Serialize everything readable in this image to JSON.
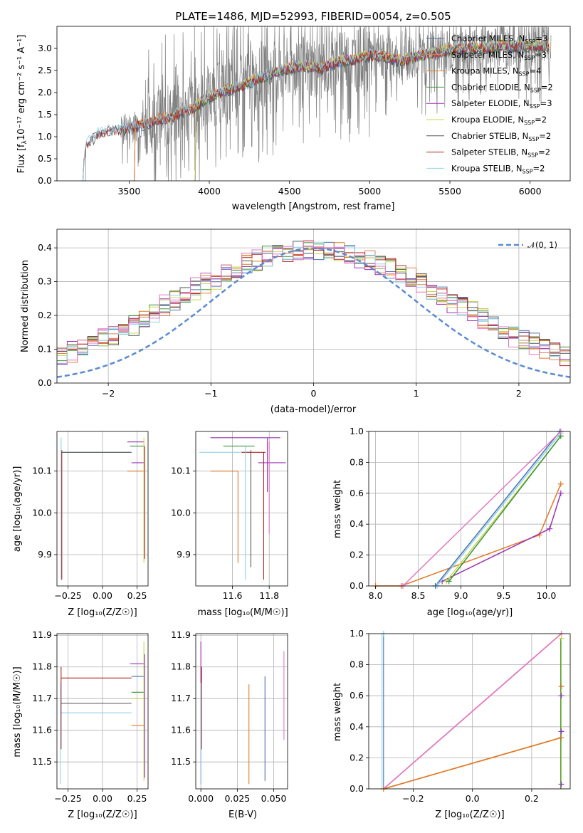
{
  "title": "PLATE=1486, MJD=52993, FIBERID=0054, z=0.505",
  "colors": {
    "chabrier_miles": "#4c72b0",
    "salpeter_miles": "#dd8452",
    "kroupa_miles": "#e07b2a",
    "chabrier_elodie": "#3a923a",
    "salpeter_elodie": "#9b30b5",
    "kroupa_elodie": "#c8d84a",
    "chabrier_stelib": "#555555",
    "salpeter_stelib": "#b22222",
    "kroupa_stelib": "#8fd3e8",
    "pink": "#e377c2",
    "normal": "#5b8bd0",
    "data": "#808080"
  },
  "spectrum": {
    "xlabel": "wavelength [Angstrom, rest frame]",
    "ylabel_main": "Flux [f",
    "ylabel_sub": "λ",
    "ylabel_rest": "10⁻¹⁷ erg cm⁻² s⁻¹ A⁻¹]",
    "xticks": [
      "3500",
      "4000",
      "4500",
      "5000",
      "5500",
      "6000"
    ],
    "yticks": [
      "0.0",
      "0.5",
      "1.0",
      "1.5",
      "2.0",
      "2.5",
      "3.0"
    ],
    "legend": [
      {
        "pre": "Chabrier MILES, N",
        "sub": "SSP",
        "post": "=3"
      },
      {
        "pre": "Salpeter MILES, N",
        "sub": "SSP",
        "post": "=3"
      },
      {
        "pre": "Kroupa MILES, N",
        "sub": "SSP",
        "post": "=4"
      },
      {
        "pre": "Chabrier ELODIE, N",
        "sub": "SSP",
        "post": "=2"
      },
      {
        "pre": "Salpeter ELODIE, N",
        "sub": "SSP",
        "post": "=3"
      },
      {
        "pre": "Kroupa ELODIE, N",
        "sub": "SSP",
        "post": "=2"
      },
      {
        "pre": "Chabrier STELIB, N",
        "sub": "SSP",
        "post": "=2"
      },
      {
        "pre": "Salpeter STELIB, N",
        "sub": "SSP",
        "post": "=2"
      },
      {
        "pre": "Kroupa STELIB, N",
        "sub": "SSP",
        "post": "=2"
      }
    ]
  },
  "histogram": {
    "xlabel": "(data-model)/error",
    "ylabel": "Normed distribution",
    "xticks": [
      "−2",
      "−1",
      "0",
      "1",
      "2"
    ],
    "yticks": [
      "0.0",
      "0.1",
      "0.2",
      "0.3",
      "0.4"
    ],
    "legend": "𝒩(0, 1)"
  },
  "panels": {
    "age_label": "age  [log₁₀(age/yr)]",
    "mass_axis_label": "mass [log₁₀(M/M☉)]",
    "z_label": "Z [log₁₀(Z/Z☉)]",
    "mass_weight": "mass weight",
    "ebv": "E(B-V)",
    "age_yticks": [
      "9.9",
      "10.0",
      "10.1"
    ],
    "z_xticks": [
      "−0.25",
      "0.00",
      "0.25"
    ],
    "mass_xticks": [
      "11.6",
      "11.8"
    ],
    "weight_yticks": [
      "0.0",
      "0.2",
      "0.4",
      "0.6",
      "0.8",
      "1.0"
    ],
    "age_xticks": [
      "8.0",
      "8.5",
      "9.0",
      "9.5",
      "10.0"
    ],
    "mass_yticks": [
      "11.5",
      "11.6",
      "11.7",
      "11.8",
      "11.9"
    ],
    "ebv_xticks": [
      "0.000",
      "0.025",
      "0.050"
    ],
    "zw_xticks": [
      "−0.2",
      "0.0",
      "0.2"
    ]
  },
  "chart_data": [
    {
      "type": "line",
      "title": "PLATE=1486, MJD=52993, FIBERID=0054, z=0.505",
      "xlabel": "wavelength [Angstrom, rest frame]",
      "ylabel": "Flux [fλ10⁻¹⁷ erg cm⁻² s⁻¹ A⁻¹]",
      "xlim": [
        3050,
        6250
      ],
      "ylim": [
        0,
        3.5
      ],
      "series_names": [
        "Chabrier MILES, N_SSP=3",
        "Salpeter MILES, N_SSP=3",
        "Kroupa MILES, N_SSP=4",
        "Chabrier ELODIE, N_SSP=2",
        "Salpeter ELODIE, N_SSP=3",
        "Kroupa ELODIE, N_SSP=2",
        "Chabrier STELIB, N_SSP=2",
        "Salpeter STELIB, N_SSP=2",
        "Kroupa STELIB, N_SSP=2"
      ],
      "model_envelope": {
        "x": [
          3200,
          3230,
          3300,
          3400,
          3500,
          3600,
          3700,
          3800,
          3900,
          4000,
          4100,
          4200,
          4300,
          4400,
          4500,
          4600,
          4700,
          4800,
          4900,
          5000,
          5100,
          5200,
          5300,
          5400,
          5500,
          5600,
          5700,
          5800,
          5900,
          6000,
          6100
        ],
        "y": [
          0.0,
          0.8,
          1.05,
          1.15,
          1.2,
          1.3,
          1.4,
          1.5,
          1.65,
          1.9,
          2.05,
          2.15,
          2.3,
          2.45,
          2.55,
          2.6,
          2.55,
          2.7,
          2.75,
          2.85,
          2.8,
          2.7,
          2.85,
          2.9,
          2.95,
          3.0,
          3.0,
          3.05,
          3.05,
          3.05,
          3.05
        ]
      },
      "grid": false,
      "legend_position": "upper-right"
    },
    {
      "type": "histogram",
      "xlabel": "(data-model)/error",
      "ylabel": "Normed distribution",
      "xlim": [
        -2.5,
        2.5
      ],
      "ylim": [
        0,
        0.45
      ],
      "bin_width": 0.1,
      "reference_curve": "𝒩(0, 1)",
      "grid": true,
      "legend_position": "upper-right"
    },
    {
      "type": "scatter",
      "xlabel": "age  [log₁₀(age/yr)]",
      "ylabel": "mass weight",
      "xlim": [
        7.92,
        10.28
      ],
      "ylim": [
        0,
        1
      ],
      "series": [
        {
          "points": [
            [
              8.3,
              0.0
            ],
            [
              9.92,
              0.33
            ],
            [
              10.17,
              0.66
            ]
          ]
        },
        {
          "points": [
            [
              8.78,
              0.03
            ],
            [
              10.04,
              0.37
            ],
            [
              10.17,
              0.6
            ]
          ]
        },
        {
          "points": [
            [
              8.7,
              0.0
            ],
            [
              10.16,
              1.0
            ]
          ]
        },
        {
          "points": [
            [
              8.83,
              0.03
            ],
            [
              10.17,
              0.97
            ]
          ]
        },
        {
          "points": [
            [
              8.32,
              0.0
            ],
            [
              10.17,
              1.0
            ]
          ]
        }
      ],
      "grid": true
    },
    {
      "type": "scatter",
      "xlabel": "Z [log₁₀(Z/Z☉)]",
      "ylabel": "mass weight",
      "xlim": [
        -0.35,
        0.33
      ],
      "ylim": [
        0,
        1
      ],
      "series": [
        {
          "points": [
            [
              -0.3,
              0.0
            ],
            [
              0.3,
              0.33
            ]
          ]
        },
        {
          "points": [
            [
              -0.3,
              0.0
            ],
            [
              0.3,
              1.0
            ]
          ]
        }
      ],
      "grid": true
    }
  ]
}
